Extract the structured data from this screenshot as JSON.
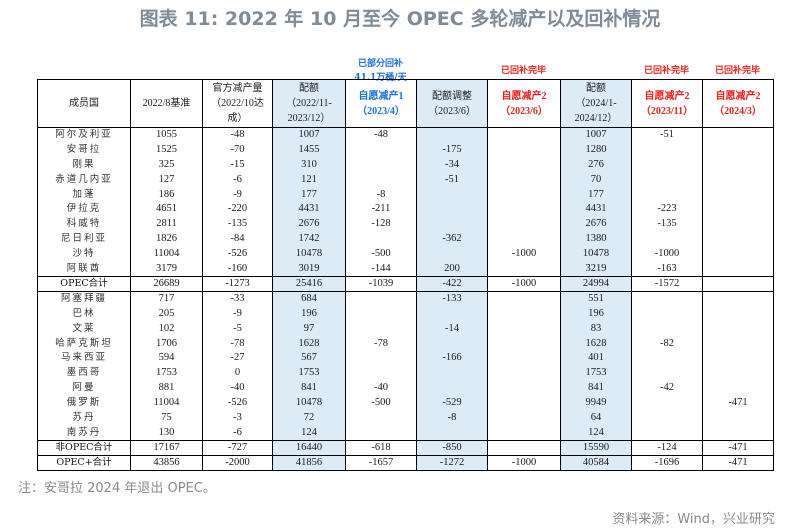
{
  "title": "图表 11: 2022 年 10 月至今 OPEC 多轮减产以及回补情况",
  "annotations": {
    "partial_refill_line1": "已部分回补",
    "partial_refill_line2": "41.1万桶/天",
    "refill_done_2023_6": "已回补完毕",
    "refill_done_2023_11": "已回补完毕",
    "refill_done_2024_3": "已回补完毕"
  },
  "table": {
    "headers": [
      {
        "line1": "成员国",
        "line2": "",
        "line3": ""
      },
      {
        "line1": "2022/8基准",
        "line2": "",
        "line3": ""
      },
      {
        "line1": "官方减产量",
        "line2": "（2022/10达",
        "line3": "成）"
      },
      {
        "line1": "配额",
        "line2": "（2022/11-",
        "line3": "2023/12）"
      },
      {
        "line1": "自愿减产1",
        "line2": "（2023/4）",
        "line3": ""
      },
      {
        "line1": "配额调整",
        "line2": "（2023/6）",
        "line3": ""
      },
      {
        "line1": "自愿减产2",
        "line2": "（2023/6）",
        "line3": ""
      },
      {
        "line1": "配额",
        "line2": "（2024/1-",
        "line3": "2024/12）"
      },
      {
        "line1": "自愿减产2",
        "line2": "（2023/11）",
        "line3": ""
      },
      {
        "line1": "自愿减产2",
        "line2": "（2024/3）",
        "line3": ""
      }
    ],
    "opec_rows": [
      [
        "阿尔及利亚",
        "1055",
        "-48",
        "1007",
        "-48",
        "",
        "",
        "1007",
        "-51",
        ""
      ],
      [
        "安哥拉",
        "1525",
        "-70",
        "1455",
        "",
        "-175",
        "",
        "1280",
        "",
        ""
      ],
      [
        "刚果",
        "325",
        "-15",
        "310",
        "",
        "-34",
        "",
        "276",
        "",
        ""
      ],
      [
        "赤道几内亚",
        "127",
        "-6",
        "121",
        "",
        "-51",
        "",
        "70",
        "",
        ""
      ],
      [
        "加蓬",
        "186",
        "-9",
        "177",
        "-8",
        "",
        "",
        "177",
        "",
        ""
      ],
      [
        "伊拉克",
        "4651",
        "-220",
        "4431",
        "-211",
        "",
        "",
        "4431",
        "-223",
        ""
      ],
      [
        "科威特",
        "2811",
        "-135",
        "2676",
        "-128",
        "",
        "",
        "2676",
        "-135",
        ""
      ],
      [
        "尼日利亚",
        "1826",
        "-84",
        "1742",
        "",
        "-362",
        "",
        "1380",
        "",
        ""
      ],
      [
        "沙特",
        "11004",
        "-526",
        "10478",
        "-500",
        "",
        "-1000",
        "10478",
        "-1000",
        ""
      ],
      [
        "阿联酋",
        "3179",
        "-160",
        "3019",
        "-144",
        "200",
        "",
        "3219",
        "-163",
        ""
      ]
    ],
    "opec_total": [
      "OPEC合计",
      "26689",
      "-1273",
      "25416",
      "-1039",
      "-422",
      "-1000",
      "24994",
      "-1572",
      ""
    ],
    "non_opec_rows": [
      [
        "阿塞拜疆",
        "717",
        "-33",
        "684",
        "",
        "-133",
        "",
        "551",
        "",
        ""
      ],
      [
        "巴林",
        "205",
        "-9",
        "196",
        "",
        "",
        "",
        "196",
        "",
        ""
      ],
      [
        "文莱",
        "102",
        "-5",
        "97",
        "",
        "-14",
        "",
        "83",
        "",
        ""
      ],
      [
        "哈萨克斯坦",
        "1706",
        "-78",
        "1628",
        "-78",
        "",
        "",
        "1628",
        "-82",
        ""
      ],
      [
        "马来西亚",
        "594",
        "-27",
        "567",
        "",
        "-166",
        "",
        "401",
        "",
        ""
      ],
      [
        "墨西哥",
        "1753",
        "0",
        "1753",
        "",
        "",
        "",
        "1753",
        "",
        ""
      ],
      [
        "阿曼",
        "881",
        "-40",
        "841",
        "-40",
        "",
        "",
        "841",
        "-42",
        ""
      ],
      [
        "俄罗斯",
        "11004",
        "-526",
        "10478",
        "-500",
        "-529",
        "",
        "9949",
        "",
        "-471"
      ],
      [
        "苏丹",
        "75",
        "-3",
        "72",
        "",
        "-8",
        "",
        "64",
        "",
        ""
      ],
      [
        "南苏丹",
        "130",
        "-6",
        "124",
        "",
        "",
        "",
        "124",
        "",
        ""
      ]
    ],
    "non_opec_total": [
      "非OPEC合计",
      "17167",
      "-727",
      "16440",
      "-618",
      "-850",
      "",
      "15590",
      "-124",
      "-471"
    ],
    "opec_plus_total": [
      "OPEC+合计",
      "43856",
      "-2000",
      "41856",
      "-1657",
      "-1272",
      "-1000",
      "40584",
      "-1696",
      "-471"
    ]
  },
  "note": "注：安哥拉 2024 年退出 OPEC。",
  "source": "资料来源：Wind，兴业研究",
  "colors": {
    "title": "#7f8b99",
    "highlight_column_bg": "#ddebf7",
    "annotation_blue": "#1f6fd6",
    "annotation_red": "#e8231e"
  }
}
